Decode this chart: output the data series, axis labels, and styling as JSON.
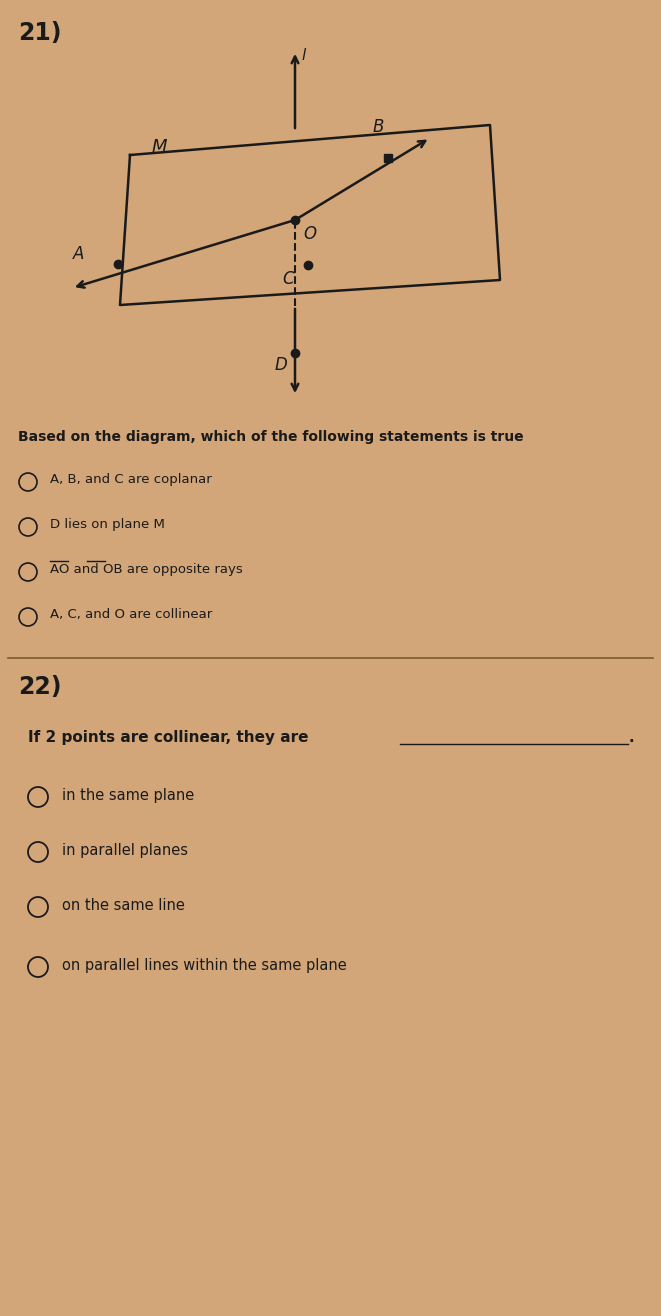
{
  "bg_color": "#D2A679",
  "title_q21": "21)",
  "title_q22": "22)",
  "q21_question": "Based on the diagram, which of the following statements is true",
  "q21_options": [
    "A, B, and C are coplanar",
    "D lies on plane M",
    "AO and OB are opposite rays",
    "A, C, and O are collinear"
  ],
  "q22_question": "If 2 points are collinear, they are",
  "q22_options": [
    "in the same plane",
    "in parallel planes",
    "on the same line",
    "on parallel lines within the same plane"
  ],
  "plane_color": "#1a1a1a",
  "text_color": "#1a1a1a"
}
